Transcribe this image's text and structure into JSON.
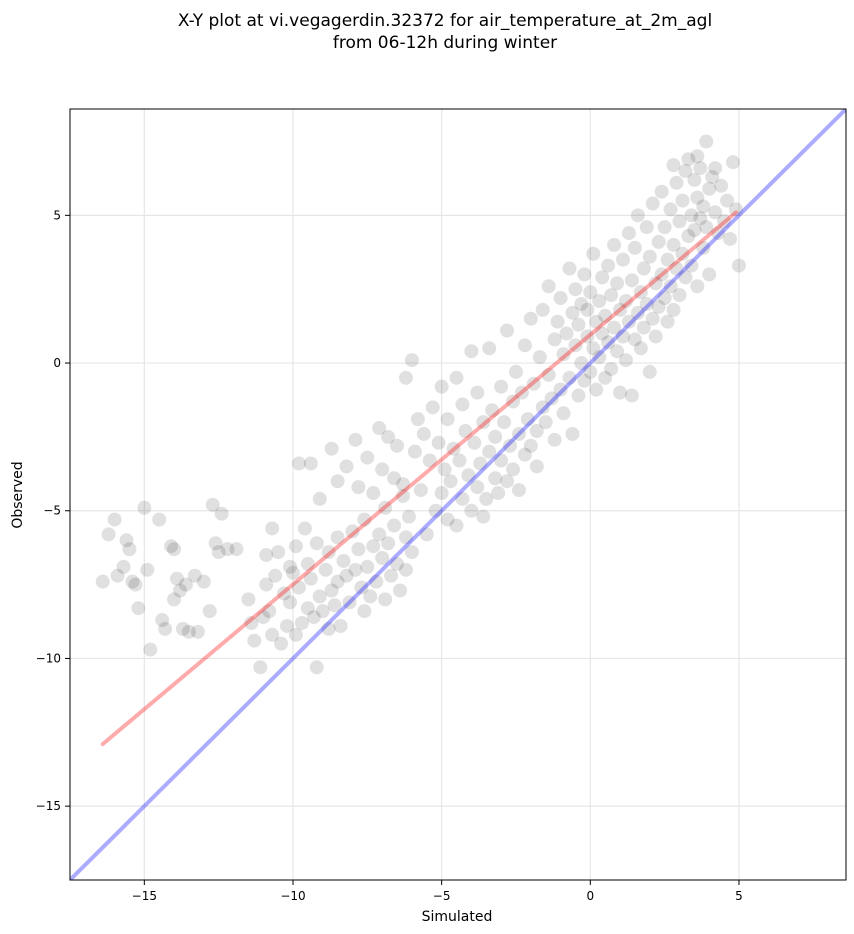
{
  "chart_data": {
    "type": "scatter",
    "title_line1": "X-Y plot at vi.vegagerdin.32372 for air_temperature_at_2m_agl",
    "title_line2": "from 06-12h during winter",
    "xlabel": "Simulated",
    "ylabel": "Observed",
    "xlim": [
      -17.5,
      8.6
    ],
    "ylim": [
      -17.5,
      8.6
    ],
    "xticks": [
      -15,
      -10,
      -5,
      0,
      5
    ],
    "yticks": [
      -15,
      -10,
      -5,
      0,
      5
    ],
    "xtick_labels": [
      "−15",
      "−10",
      "−5",
      "0",
      "5"
    ],
    "ytick_labels": [
      "−15",
      "−10",
      "−5",
      "0",
      "5"
    ],
    "grid": true,
    "point_color": "#000000",
    "point_alpha": 0.08,
    "regression_line": {
      "color": "#ff0000",
      "x": [
        -16.4,
        4.9
      ],
      "y": [
        -12.9,
        5.1
      ]
    },
    "identity_line": {
      "color": "#0000ff",
      "x": [
        -17.5,
        8.6
      ],
      "y": [
        -17.5,
        8.6
      ]
    },
    "points": [
      [
        -16.4,
        -7.4
      ],
      [
        -16.2,
        -5.8
      ],
      [
        -16.0,
        -5.3
      ],
      [
        -15.9,
        -7.2
      ],
      [
        -15.7,
        -6.9
      ],
      [
        -15.6,
        -6.0
      ],
      [
        -15.5,
        -6.3
      ],
      [
        -15.4,
        -7.4
      ],
      [
        -15.3,
        -7.5
      ],
      [
        -15.2,
        -8.3
      ],
      [
        -15.0,
        -4.9
      ],
      [
        -14.9,
        -7.0
      ],
      [
        -14.8,
        -9.7
      ],
      [
        -14.5,
        -5.3
      ],
      [
        -14.4,
        -8.7
      ],
      [
        -14.3,
        -9.0
      ],
      [
        -14.1,
        -6.2
      ],
      [
        -14.0,
        -6.3
      ],
      [
        -14.0,
        -8.0
      ],
      [
        -13.9,
        -7.3
      ],
      [
        -13.8,
        -7.7
      ],
      [
        -13.7,
        -9.0
      ],
      [
        -13.6,
        -7.5
      ],
      [
        -13.5,
        -9.1
      ],
      [
        -13.3,
        -7.2
      ],
      [
        -13.2,
        -9.1
      ],
      [
        -13.0,
        -7.4
      ],
      [
        -12.8,
        -8.4
      ],
      [
        -12.7,
        -4.8
      ],
      [
        -12.6,
        -6.1
      ],
      [
        -12.5,
        -6.4
      ],
      [
        -12.4,
        -5.1
      ],
      [
        -12.2,
        -6.3
      ],
      [
        -11.9,
        -6.3
      ],
      [
        -11.5,
        -8.0
      ],
      [
        -11.4,
        -8.8
      ],
      [
        -11.3,
        -9.4
      ],
      [
        -11.1,
        -10.3
      ],
      [
        -11.0,
        -8.6
      ],
      [
        -10.9,
        -7.5
      ],
      [
        -10.9,
        -6.5
      ],
      [
        -10.8,
        -8.4
      ],
      [
        -10.7,
        -9.2
      ],
      [
        -10.7,
        -5.6
      ],
      [
        -10.6,
        -7.2
      ],
      [
        -10.5,
        -6.4
      ],
      [
        -10.4,
        -9.5
      ],
      [
        -10.3,
        -7.8
      ],
      [
        -10.2,
        -8.9
      ],
      [
        -10.1,
        -6.9
      ],
      [
        -10.1,
        -8.1
      ],
      [
        -10.0,
        -7.1
      ],
      [
        -9.9,
        -9.2
      ],
      [
        -9.9,
        -6.2
      ],
      [
        -9.8,
        -7.6
      ],
      [
        -9.7,
        -8.8
      ],
      [
        -9.6,
        -5.6
      ],
      [
        -9.5,
        -8.3
      ],
      [
        -9.5,
        -6.8
      ],
      [
        -9.4,
        -7.3
      ],
      [
        -9.3,
        -8.6
      ],
      [
        -9.2,
        -10.3
      ],
      [
        -9.2,
        -6.1
      ],
      [
        -9.1,
        -7.9
      ],
      [
        -9.0,
        -8.4
      ],
      [
        -8.9,
        -7.0
      ],
      [
        -8.8,
        -9.0
      ],
      [
        -8.8,
        -6.4
      ],
      [
        -8.7,
        -7.7
      ],
      [
        -8.6,
        -8.2
      ],
      [
        -8.5,
        -5.9
      ],
      [
        -8.5,
        -7.4
      ],
      [
        -8.4,
        -8.9
      ],
      [
        -8.3,
        -6.7
      ],
      [
        -8.2,
        -7.2
      ],
      [
        -8.1,
        -8.1
      ],
      [
        -8.0,
        -5.7
      ],
      [
        -7.9,
        -7.0
      ],
      [
        -7.8,
        -6.3
      ],
      [
        -7.7,
        -7.6
      ],
      [
        -7.6,
        -8.4
      ],
      [
        -7.6,
        -5.3
      ],
      [
        -7.5,
        -6.9
      ],
      [
        -7.4,
        -7.9
      ],
      [
        -7.3,
        -6.2
      ],
      [
        -7.2,
        -7.4
      ],
      [
        -7.1,
        -5.8
      ],
      [
        -7.0,
        -6.6
      ],
      [
        -6.9,
        -8.0
      ],
      [
        -6.9,
        -4.9
      ],
      [
        -6.8,
        -6.1
      ],
      [
        -6.7,
        -7.2
      ],
      [
        -6.6,
        -5.5
      ],
      [
        -6.5,
        -6.8
      ],
      [
        -6.4,
        -7.7
      ],
      [
        -6.3,
        -4.5
      ],
      [
        -6.2,
        -5.9
      ],
      [
        -6.2,
        -7.0
      ],
      [
        -6.1,
        -5.2
      ],
      [
        -6.0,
        -6.4
      ],
      [
        -9.8,
        -3.4
      ],
      [
        -9.4,
        -3.4
      ],
      [
        -9.1,
        -4.6
      ],
      [
        -8.7,
        -2.9
      ],
      [
        -8.5,
        -4.0
      ],
      [
        -8.2,
        -3.5
      ],
      [
        -7.9,
        -2.6
      ],
      [
        -7.8,
        -4.2
      ],
      [
        -7.5,
        -3.2
      ],
      [
        -7.3,
        -4.4
      ],
      [
        -7.1,
        -2.2
      ],
      [
        -7.0,
        -3.6
      ],
      [
        -6.8,
        -2.5
      ],
      [
        -6.6,
        -3.9
      ],
      [
        -6.5,
        -2.8
      ],
      [
        -6.3,
        -4.1
      ],
      [
        -6.2,
        -0.5
      ],
      [
        -6.0,
        0.1
      ],
      [
        -5.9,
        -3.0
      ],
      [
        -5.8,
        -1.9
      ],
      [
        -5.7,
        -4.3
      ],
      [
        -5.6,
        -2.4
      ],
      [
        -5.5,
        -5.8
      ],
      [
        -5.4,
        -3.3
      ],
      [
        -5.3,
        -1.5
      ],
      [
        -5.2,
        -5.0
      ],
      [
        -5.1,
        -2.7
      ],
      [
        -5.0,
        -0.8
      ],
      [
        -5.0,
        -4.4
      ],
      [
        -4.9,
        -3.6
      ],
      [
        -4.8,
        -5.3
      ],
      [
        -4.8,
        -1.9
      ],
      [
        -4.7,
        -4.0
      ],
      [
        -4.6,
        -2.9
      ],
      [
        -4.5,
        -5.5
      ],
      [
        -4.5,
        -0.5
      ],
      [
        -4.4,
        -3.3
      ],
      [
        -4.3,
        -4.6
      ],
      [
        -4.3,
        -1.4
      ],
      [
        -4.2,
        -2.3
      ],
      [
        -4.1,
        -3.8
      ],
      [
        -4.0,
        -5.0
      ],
      [
        -4.0,
        0.4
      ],
      [
        -3.9,
        -2.7
      ],
      [
        -3.8,
        -4.2
      ],
      [
        -3.8,
        -1.0
      ],
      [
        -3.7,
        -3.4
      ],
      [
        -3.6,
        -5.2
      ],
      [
        -3.6,
        -2.0
      ],
      [
        -3.5,
        -4.6
      ],
      [
        -3.4,
        -3.0
      ],
      [
        -3.4,
        0.5
      ],
      [
        -3.3,
        -1.6
      ],
      [
        -3.2,
        -3.9
      ],
      [
        -3.2,
        -2.5
      ],
      [
        -3.1,
        -4.4
      ],
      [
        -3.0,
        -0.8
      ],
      [
        -3.0,
        -3.3
      ],
      [
        -2.9,
        -2.0
      ],
      [
        -2.8,
        -4.0
      ],
      [
        -2.8,
        1.1
      ],
      [
        -2.7,
        -2.8
      ],
      [
        -2.6,
        -1.3
      ],
      [
        -2.6,
        -3.6
      ],
      [
        -2.5,
        -0.3
      ],
      [
        -2.4,
        -2.4
      ],
      [
        -2.4,
        -4.3
      ],
      [
        -2.3,
        -1.0
      ],
      [
        -2.2,
        -3.1
      ],
      [
        -2.2,
        0.6
      ],
      [
        -2.1,
        -1.9
      ],
      [
        -2.0,
        -2.8
      ],
      [
        -2.0,
        1.5
      ],
      [
        -1.9,
        -0.7
      ],
      [
        -1.8,
        -2.3
      ],
      [
        -1.8,
        -3.5
      ],
      [
        -1.7,
        0.2
      ],
      [
        -1.6,
        -1.5
      ],
      [
        -1.6,
        1.8
      ],
      [
        -1.5,
        -2.0
      ],
      [
        -1.4,
        -0.4
      ],
      [
        -1.4,
        2.6
      ],
      [
        -1.3,
        -1.2
      ],
      [
        -1.2,
        0.8
      ],
      [
        -1.2,
        -2.6
      ],
      [
        -1.1,
        1.4
      ],
      [
        -1.0,
        -0.9
      ],
      [
        -1.0,
        2.2
      ],
      [
        -0.9,
        0.3
      ],
      [
        -0.9,
        -1.7
      ],
      [
        -0.8,
        1.0
      ],
      [
        -0.7,
        3.2
      ],
      [
        -0.7,
        -0.5
      ],
      [
        -0.6,
        1.7
      ],
      [
        -0.6,
        -2.4
      ],
      [
        -0.5,
        0.6
      ],
      [
        -0.5,
        2.5
      ],
      [
        -0.4,
        -1.1
      ],
      [
        -0.4,
        1.3
      ],
      [
        -0.3,
        0.0
      ],
      [
        -0.3,
        2.0
      ],
      [
        -0.2,
        -0.6
      ],
      [
        -0.2,
        3.0
      ],
      [
        -0.1,
        0.9
      ],
      [
        -0.1,
        1.8
      ],
      [
        0.0,
        -0.3
      ],
      [
        0.0,
        2.4
      ],
      [
        0.1,
        0.5
      ],
      [
        0.1,
        3.7
      ],
      [
        0.2,
        1.4
      ],
      [
        0.2,
        -0.9
      ],
      [
        0.3,
        2.1
      ],
      [
        0.3,
        0.2
      ],
      [
        0.4,
        1.0
      ],
      [
        0.4,
        2.9
      ],
      [
        0.5,
        -0.5
      ],
      [
        0.5,
        1.6
      ],
      [
        0.6,
        0.7
      ],
      [
        0.6,
        3.3
      ],
      [
        0.7,
        2.3
      ],
      [
        0.7,
        -0.2
      ],
      [
        0.8,
        1.2
      ],
      [
        0.8,
        4.0
      ],
      [
        0.9,
        0.4
      ],
      [
        0.9,
        2.7
      ],
      [
        1.0,
        1.8
      ],
      [
        1.0,
        -1.0
      ],
      [
        1.1,
        0.9
      ],
      [
        1.1,
        3.5
      ],
      [
        1.2,
        2.1
      ],
      [
        1.2,
        0.1
      ],
      [
        1.3,
        1.4
      ],
      [
        1.3,
        4.4
      ],
      [
        1.4,
        -1.1
      ],
      [
        1.4,
        2.8
      ],
      [
        1.5,
        0.8
      ],
      [
        1.5,
        3.9
      ],
      [
        1.6,
        1.7
      ],
      [
        1.6,
        5.0
      ],
      [
        1.7,
        2.4
      ],
      [
        1.7,
        0.5
      ],
      [
        1.8,
        3.2
      ],
      [
        1.8,
        1.2
      ],
      [
        1.9,
        4.6
      ],
      [
        1.9,
        2.0
      ],
      [
        2.0,
        -0.3
      ],
      [
        2.0,
        3.6
      ],
      [
        2.1,
        1.5
      ],
      [
        2.1,
        5.4
      ],
      [
        2.2,
        2.7
      ],
      [
        2.2,
        0.9
      ],
      [
        2.3,
        4.1
      ],
      [
        2.3,
        1.9
      ],
      [
        2.4,
        5.8
      ],
      [
        2.4,
        3.0
      ],
      [
        2.5,
        2.2
      ],
      [
        2.5,
        4.6
      ],
      [
        2.6,
        1.4
      ],
      [
        2.6,
        3.5
      ],
      [
        2.7,
        5.2
      ],
      [
        2.7,
        2.6
      ],
      [
        2.8,
        4.0
      ],
      [
        2.8,
        1.8
      ],
      [
        2.9,
        6.1
      ],
      [
        2.9,
        3.2
      ],
      [
        3.0,
        4.8
      ],
      [
        3.0,
        2.3
      ],
      [
        3.1,
        5.5
      ],
      [
        3.1,
        3.7
      ],
      [
        3.2,
        6.5
      ],
      [
        3.2,
        2.9
      ],
      [
        3.3,
        4.3
      ],
      [
        3.3,
        6.9
      ],
      [
        3.4,
        5.0
      ],
      [
        3.4,
        3.3
      ],
      [
        3.5,
        6.2
      ],
      [
        3.5,
        4.5
      ],
      [
        3.6,
        5.6
      ],
      [
        3.6,
        2.6
      ],
      [
        3.7,
        4.9
      ],
      [
        3.7,
        6.6
      ],
      [
        3.8,
        3.9
      ],
      [
        3.8,
        5.3
      ],
      [
        3.9,
        7.5
      ],
      [
        3.9,
        4.6
      ],
      [
        4.0,
        5.9
      ],
      [
        4.0,
        3.0
      ],
      [
        4.1,
        6.3
      ],
      [
        4.2,
        5.1
      ],
      [
        4.3,
        4.4
      ],
      [
        4.4,
        6.0
      ],
      [
        4.5,
        4.8
      ],
      [
        4.6,
        5.5
      ],
      [
        4.7,
        4.2
      ],
      [
        4.8,
        6.8
      ],
      [
        4.9,
        5.2
      ],
      [
        5.0,
        3.3
      ],
      [
        4.2,
        6.6
      ],
      [
        3.6,
        7.0
      ],
      [
        2.8,
        6.7
      ]
    ]
  }
}
